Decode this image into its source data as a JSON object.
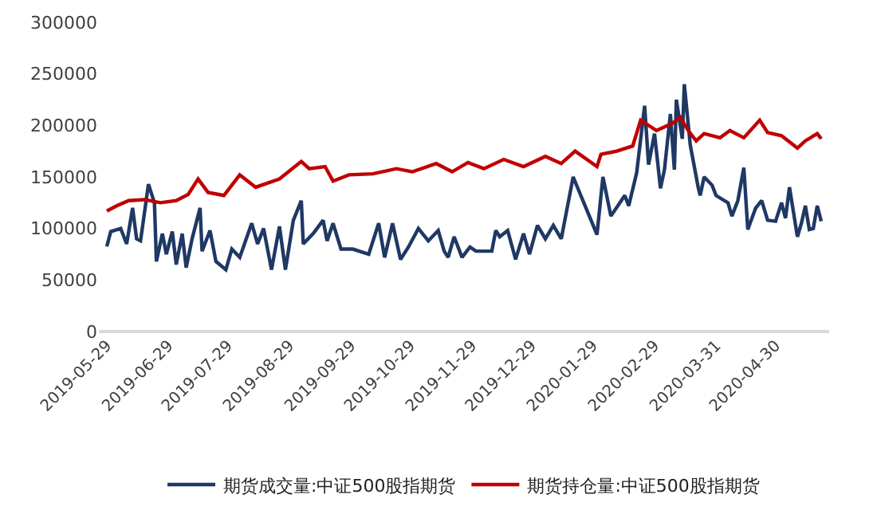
{
  "chart_data": {
    "type": "line",
    "xlim": [
      "2019-05-25",
      "2020-05-27"
    ],
    "xticks": [
      "2019-05-29",
      "2019-06-29",
      "2019-07-29",
      "2019-08-29",
      "2019-09-29",
      "2019-10-29",
      "2019-11-29",
      "2019-12-29",
      "2020-01-29",
      "2020-02-29",
      "2020-03-31",
      "2020-04-30"
    ],
    "ylim": [
      0,
      300000
    ],
    "yticks": [
      0,
      50000,
      100000,
      150000,
      200000,
      250000,
      300000
    ],
    "grid": false,
    "legend": "bottom",
    "marker": "none",
    "line_style": "solid",
    "series": [
      {
        "name": "期货成交量:中证500股指期货",
        "color": "#1f3864",
        "x": [
          "2019-05-29",
          "2019-05-31",
          "2019-06-05",
          "2019-06-08",
          "2019-06-11",
          "2019-06-13",
          "2019-06-15",
          "2019-06-19",
          "2019-06-22",
          "2019-06-23",
          "2019-06-26",
          "2019-06-28",
          "2019-07-01",
          "2019-07-03",
          "2019-07-06",
          "2019-07-08",
          "2019-07-11",
          "2019-07-15",
          "2019-07-16",
          "2019-07-20",
          "2019-07-23",
          "2019-07-28",
          "2019-07-31",
          "2019-08-04",
          "2019-08-10",
          "2019-08-13",
          "2019-08-16",
          "2019-08-20",
          "2019-08-24",
          "2019-08-27",
          "2019-08-31",
          "2019-09-04",
          "2019-09-05",
          "2019-09-10",
          "2019-09-15",
          "2019-09-17",
          "2019-09-20",
          "2019-09-24",
          "2019-09-30",
          "2019-10-08",
          "2019-10-13",
          "2019-10-16",
          "2019-10-20",
          "2019-10-24",
          "2019-10-28",
          "2019-11-02",
          "2019-11-07",
          "2019-11-12",
          "2019-11-15",
          "2019-11-17",
          "2019-11-20",
          "2019-11-24",
          "2019-11-28",
          "2019-12-01",
          "2019-12-09",
          "2019-12-11",
          "2019-12-13",
          "2019-12-17",
          "2019-12-21",
          "2019-12-25",
          "2019-12-28",
          "2020-01-01",
          "2020-01-05",
          "2020-01-09",
          "2020-01-13",
          "2020-01-19",
          "2020-01-31",
          "2020-02-03",
          "2020-02-07",
          "2020-02-14",
          "2020-02-16",
          "2020-02-20",
          "2020-02-24",
          "2020-02-26",
          "2020-02-29",
          "2020-03-03",
          "2020-03-05",
          "2020-03-08",
          "2020-03-10",
          "2020-03-11",
          "2020-03-14",
          "2020-03-15",
          "2020-03-18",
          "2020-03-22",
          "2020-03-23",
          "2020-03-25",
          "2020-03-29",
          "2020-03-31",
          "2020-04-06",
          "2020-04-08",
          "2020-04-11",
          "2020-04-14",
          "2020-04-16",
          "2020-04-20",
          "2020-04-23",
          "2020-04-26",
          "2020-04-30",
          "2020-05-03",
          "2020-05-05",
          "2020-05-07",
          "2020-05-11",
          "2020-05-13",
          "2020-05-15",
          "2020-05-17",
          "2020-05-19",
          "2020-05-21",
          "2020-05-23"
        ],
        "values": [
          82500,
          97000,
          100000,
          85000,
          120000,
          90000,
          88000,
          143000,
          125000,
          68000,
          95000,
          75000,
          97000,
          65000,
          95000,
          62000,
          90000,
          120000,
          78000,
          98000,
          68000,
          60000,
          80000,
          72000,
          105000,
          85000,
          100000,
          60000,
          102000,
          60000,
          108000,
          127000,
          85000,
          95000,
          108000,
          88000,
          105000,
          80000,
          80000,
          75000,
          105000,
          72000,
          105000,
          70000,
          82000,
          100000,
          88000,
          98000,
          78000,
          72000,
          92000,
          72000,
          82000,
          78000,
          78000,
          98000,
          92000,
          98000,
          70000,
          95000,
          75000,
          103000,
          90000,
          103000,
          90000,
          150000,
          94000,
          150000,
          112000,
          132000,
          122000,
          154000,
          219000,
          162000,
          192000,
          139000,
          157000,
          211000,
          157000,
          225000,
          187000,
          240000,
          181000,
          140000,
          132000,
          150000,
          142000,
          132000,
          125000,
          112000,
          127000,
          159000,
          99000,
          120000,
          127000,
          108000,
          107000,
          125000,
          110000,
          140000,
          92000,
          105000,
          122000,
          99000,
          100000,
          122000,
          107000
        ]
      },
      {
        "name": "期货持仓量:中证500股指期货",
        "color": "#c00000",
        "x": [
          "2019-05-29",
          "2019-06-03",
          "2019-06-09",
          "2019-06-17",
          "2019-06-25",
          "2019-07-03",
          "2019-07-09",
          "2019-07-14",
          "2019-07-19",
          "2019-07-27",
          "2019-08-04",
          "2019-08-12",
          "2019-08-24",
          "2019-09-04",
          "2019-09-08",
          "2019-09-16",
          "2019-09-20",
          "2019-09-28",
          "2019-10-10",
          "2019-10-22",
          "2019-10-30",
          "2019-11-11",
          "2019-11-19",
          "2019-11-27",
          "2019-12-05",
          "2019-12-15",
          "2019-12-25",
          "2020-01-05",
          "2020-01-13",
          "2020-01-20",
          "2020-01-31",
          "2020-02-02",
          "2020-02-10",
          "2020-02-18",
          "2020-02-22",
          "2020-03-01",
          "2020-03-09",
          "2020-03-13",
          "2020-03-17",
          "2020-03-21",
          "2020-03-25",
          "2020-04-02",
          "2020-04-07",
          "2020-04-14",
          "2020-04-22",
          "2020-04-26",
          "2020-05-03",
          "2020-05-11",
          "2020-05-15",
          "2020-05-21",
          "2020-05-23"
        ],
        "values": [
          117000,
          122000,
          127000,
          128000,
          125000,
          127000,
          133000,
          148000,
          135000,
          132000,
          152000,
          140000,
          148000,
          165000,
          158000,
          160000,
          146000,
          152000,
          153000,
          158000,
          155000,
          163000,
          155000,
          164000,
          158000,
          167000,
          160000,
          170000,
          163000,
          175000,
          160000,
          172000,
          175000,
          180000,
          205000,
          195000,
          202000,
          208000,
          195000,
          185000,
          192000,
          188000,
          195000,
          188000,
          205000,
          193000,
          190000,
          178000,
          185000,
          192000,
          187000
        ]
      }
    ]
  }
}
